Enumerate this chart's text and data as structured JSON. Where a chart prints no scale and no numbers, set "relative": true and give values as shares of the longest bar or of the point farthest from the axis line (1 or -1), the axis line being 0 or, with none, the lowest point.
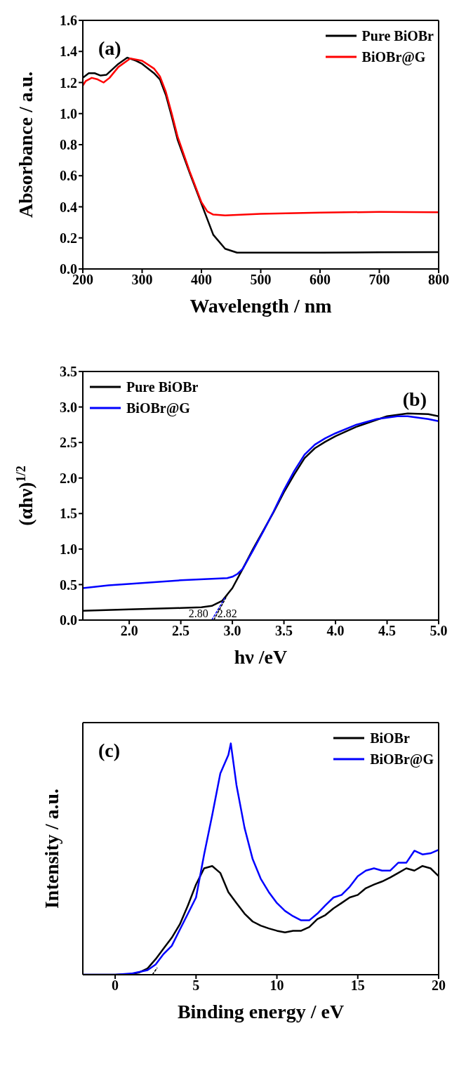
{
  "chart_data": [
    {
      "type": "line",
      "xlabel": "Wavelength / nm",
      "ylabel": "Absorbance / a.u.",
      "annotations": [
        "(a)"
      ],
      "xlim": [
        200,
        800
      ],
      "xticks": [
        200,
        300,
        400,
        500,
        600,
        700,
        800
      ],
      "ylim": [
        0,
        1.6
      ],
      "yticks": [
        {
          "value": 0,
          "label": "0.0"
        },
        0.2,
        0.4,
        0.6,
        0.8,
        {
          "value": 1,
          "label": "1.0"
        },
        1.2,
        1.4,
        1.6
      ],
      "legend": "top right",
      "series": [
        {
          "name": "Pure BiOBr",
          "color": "#000000",
          "x": [
            200,
            210,
            220,
            230,
            240,
            260,
            275,
            290,
            300,
            320,
            330,
            340,
            350,
            360,
            380,
            400,
            420,
            440,
            460,
            500,
            600,
            700,
            800
          ],
          "values": [
            1.23,
            1.26,
            1.26,
            1.245,
            1.25,
            1.32,
            1.36,
            1.34,
            1.32,
            1.26,
            1.22,
            1.12,
            0.98,
            0.83,
            0.62,
            0.42,
            0.22,
            0.13,
            0.105,
            0.105,
            0.105,
            0.107,
            0.108
          ]
        },
        {
          "name": "BiOBr@G",
          "color": "#ff0000",
          "x": [
            200,
            205,
            215,
            225,
            235,
            245,
            260,
            280,
            300,
            320,
            330,
            340,
            350,
            360,
            380,
            400,
            410,
            420,
            440,
            500,
            600,
            700,
            800
          ],
          "values": [
            1.18,
            1.21,
            1.23,
            1.22,
            1.2,
            1.23,
            1.3,
            1.355,
            1.34,
            1.29,
            1.24,
            1.14,
            1.0,
            0.85,
            0.63,
            0.43,
            0.37,
            0.35,
            0.345,
            0.355,
            0.363,
            0.367,
            0.365
          ]
        }
      ]
    },
    {
      "type": "line",
      "xlabel": "hν /eV",
      "ylabel": "(αhν)$^{1/2}$",
      "annotations": [
        "(b)",
        {
          "text": "2.80",
          "x": 2.8,
          "y": 0
        },
        {
          "text": "2.82",
          "x": 2.82,
          "y": 0
        }
      ],
      "xlim": [
        1.55,
        5.0
      ],
      "xticks": [
        {
          "value": 2,
          "label": "2.0"
        },
        2.5,
        {
          "value": 3,
          "label": "3.0"
        },
        3.5,
        {
          "value": 4,
          "label": "4.0"
        },
        4.5,
        {
          "value": 5,
          "label": "5.0"
        }
      ],
      "ylim": [
        0,
        3.5
      ],
      "yticks": [
        {
          "value": 0,
          "label": "0.0"
        },
        0.5,
        {
          "value": 1,
          "label": "1.0"
        },
        1.5,
        {
          "value": 2,
          "label": "2.0"
        },
        2.5,
        {
          "value": 3,
          "label": "3.0"
        },
        3.5
      ],
      "legend": "top left",
      "series": [
        {
          "name": "Pure BiOBr",
          "color": "#000000",
          "x": [
            1.55,
            2.0,
            2.5,
            2.7,
            2.8,
            2.9,
            3.0,
            3.1,
            3.2,
            3.3,
            3.4,
            3.5,
            3.6,
            3.7,
            3.8,
            3.9,
            4.0,
            4.2,
            4.4,
            4.5,
            4.7,
            4.9,
            5.0
          ],
          "values": [
            0.13,
            0.15,
            0.17,
            0.18,
            0.2,
            0.27,
            0.45,
            0.72,
            1.0,
            1.26,
            1.52,
            1.8,
            2.05,
            2.28,
            2.42,
            2.51,
            2.59,
            2.72,
            2.82,
            2.87,
            2.91,
            2.9,
            2.87
          ]
        },
        {
          "name": "BiOBr@G",
          "color": "#0000ff",
          "x": [
            1.55,
            1.8,
            2.0,
            2.5,
            2.8,
            2.95,
            3.0,
            3.05,
            3.1,
            3.2,
            3.3,
            3.4,
            3.5,
            3.6,
            3.7,
            3.8,
            3.9,
            4.0,
            4.2,
            4.4,
            4.6,
            4.7,
            4.9,
            5.0
          ],
          "values": [
            0.45,
            0.49,
            0.51,
            0.56,
            0.58,
            0.59,
            0.61,
            0.65,
            0.72,
            0.98,
            1.25,
            1.53,
            1.83,
            2.1,
            2.33,
            2.47,
            2.56,
            2.63,
            2.75,
            2.83,
            2.87,
            2.87,
            2.83,
            2.8
          ]
        },
        {
          "color": "#000000",
          "line_style": "dashed",
          "x": [
            2.82,
            2.95
          ],
          "values": [
            0,
            0.35
          ]
        },
        {
          "color": "#0000ff",
          "line_style": "dashed",
          "x": [
            2.8,
            2.93
          ],
          "values": [
            0,
            0.32
          ]
        }
      ]
    },
    {
      "type": "line",
      "relative": true,
      "xlabel": "Binding energy / eV",
      "ylabel": "Intensity / a.u.",
      "annotations": [
        "(c)"
      ],
      "xlim": [
        -2,
        20
      ],
      "xticks": [
        0,
        5,
        10,
        15,
        20
      ],
      "legend": "top right",
      "series": [
        {
          "name": "BiOBr",
          "color": "#000000",
          "x": [
            -2,
            0,
            1,
            1.5,
            2,
            2.5,
            3,
            3.5,
            4,
            4.5,
            5,
            5.5,
            6,
            6.5,
            7,
            7.5,
            8,
            8.5,
            9,
            9.5,
            10,
            10.5,
            11,
            11.5,
            12,
            12.5,
            13,
            13.5,
            14,
            14.5,
            15,
            15.5,
            16,
            16.5,
            17,
            17.5,
            18,
            18.5,
            19,
            19.5,
            20
          ],
          "values": [
            0,
            0,
            0.003,
            0.01,
            0.027,
            0.067,
            0.114,
            0.16,
            0.218,
            0.3,
            0.39,
            0.46,
            0.47,
            0.44,
            0.357,
            0.31,
            0.264,
            0.23,
            0.212,
            0.2,
            0.19,
            0.183,
            0.19,
            0.19,
            0.206,
            0.24,
            0.258,
            0.287,
            0.31,
            0.334,
            0.345,
            0.374,
            0.39,
            0.403,
            0.42,
            0.44,
            0.46,
            0.45,
            0.47,
            0.46,
            0.426
          ]
        },
        {
          "name": "BiOBr@G",
          "color": "#0000ff",
          "x": [
            -2,
            0,
            1,
            1.5,
            2,
            2.5,
            3,
            3.5,
            4,
            4.5,
            5,
            5.5,
            6,
            6.5,
            7,
            7.15,
            7.5,
            8,
            8.5,
            9,
            9.5,
            10,
            10.5,
            11,
            11.5,
            12,
            12.5,
            13,
            13.5,
            14,
            14.5,
            15,
            15.5,
            16,
            16.5,
            17,
            17.5,
            18,
            18.5,
            19,
            19.5,
            20
          ],
          "values": [
            0,
            0,
            0.005,
            0.012,
            0.02,
            0.044,
            0.09,
            0.125,
            0.195,
            0.264,
            0.334,
            0.52,
            0.69,
            0.87,
            0.95,
            1.0,
            0.82,
            0.635,
            0.5,
            0.415,
            0.357,
            0.31,
            0.276,
            0.253,
            0.235,
            0.235,
            0.264,
            0.3,
            0.334,
            0.345,
            0.38,
            0.426,
            0.45,
            0.46,
            0.45,
            0.45,
            0.484,
            0.484,
            0.536,
            0.52,
            0.525,
            0.54
          ]
        },
        {
          "color": "#000000",
          "line_style": "dashed",
          "x": [
            2.3,
            2.6
          ],
          "values": [
            0,
            0.03
          ]
        }
      ]
    }
  ]
}
